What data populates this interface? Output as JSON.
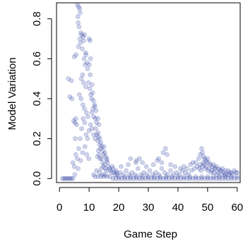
{
  "chart_data": {
    "type": "scatter",
    "title": "",
    "xlabel": "Game Step",
    "ylabel": "Model Variation",
    "xlim": [
      -1,
      61
    ],
    "ylim": [
      -0.02,
      0.88
    ],
    "xticks": [
      0,
      10,
      20,
      30,
      40,
      50,
      60
    ],
    "yticks": [
      0.0,
      0.2,
      0.4,
      0.6,
      0.8
    ],
    "xtick_labels": [
      "0",
      "10",
      "20",
      "30",
      "40",
      "50",
      "60"
    ],
    "ytick_labels": [
      "0.0",
      "0.2",
      "0.4",
      "0.6",
      "0.8"
    ],
    "grid": false,
    "legend": "none",
    "point_color": "#2b3aa0",
    "point_opacity": 0.22,
    "points": [
      [
        1,
        0.0
      ],
      [
        1.5,
        0.0
      ],
      [
        2,
        0.0
      ],
      [
        2.5,
        0.0
      ],
      [
        3,
        0.0
      ],
      [
        3.5,
        0.0
      ],
      [
        4,
        0.0
      ],
      [
        4.5,
        0.0
      ],
      [
        3,
        0.5
      ],
      [
        4,
        0.49
      ],
      [
        3.5,
        0.41
      ],
      [
        4.2,
        0.4
      ],
      [
        4.8,
        0.29
      ],
      [
        5.2,
        0.28
      ],
      [
        5.5,
        0.3
      ],
      [
        5,
        0.61
      ],
      [
        5.6,
        0.62
      ],
      [
        5.3,
        0.2
      ],
      [
        5.8,
        0.27
      ],
      [
        4.5,
        0.08
      ],
      [
        5,
        0.06
      ],
      [
        5.5,
        0.12
      ],
      [
        5.2,
        0.02
      ],
      [
        6,
        0.87
      ],
      [
        6.5,
        0.86
      ],
      [
        6.2,
        0.81
      ],
      [
        6.8,
        0.85
      ],
      [
        7,
        0.83
      ],
      [
        6.3,
        0.78
      ],
      [
        6.6,
        0.76
      ],
      [
        7.2,
        0.73
      ],
      [
        7.5,
        0.72
      ],
      [
        6.9,
        0.7
      ],
      [
        7.1,
        0.68
      ],
      [
        6.4,
        0.66
      ],
      [
        7.7,
        0.65
      ],
      [
        8,
        0.71
      ],
      [
        8.5,
        0.72
      ],
      [
        8.2,
        0.69
      ],
      [
        8.8,
        0.63
      ],
      [
        9,
        0.62
      ],
      [
        8.3,
        0.6
      ],
      [
        8.6,
        0.57
      ],
      [
        9.3,
        0.58
      ],
      [
        9.5,
        0.55
      ],
      [
        7.8,
        0.52
      ],
      [
        7.4,
        0.5
      ],
      [
        8.1,
        0.48
      ],
      [
        8.9,
        0.46
      ],
      [
        6.7,
        0.42
      ],
      [
        7.3,
        0.4
      ],
      [
        7.9,
        0.37
      ],
      [
        8.4,
        0.35
      ],
      [
        9.1,
        0.33
      ],
      [
        9.6,
        0.31
      ],
      [
        10,
        0.7
      ],
      [
        10.3,
        0.69
      ],
      [
        10.5,
        0.6
      ],
      [
        10.1,
        0.57
      ],
      [
        10.4,
        0.52
      ],
      [
        9.8,
        0.48
      ],
      [
        10.2,
        0.45
      ],
      [
        10.6,
        0.42
      ],
      [
        10.8,
        0.4
      ],
      [
        11,
        0.47
      ],
      [
        11.2,
        0.43
      ],
      [
        11.5,
        0.39
      ],
      [
        11.8,
        0.37
      ],
      [
        11.3,
        0.35
      ],
      [
        10.9,
        0.33
      ],
      [
        12,
        0.36
      ],
      [
        12.3,
        0.34
      ],
      [
        11.6,
        0.31
      ],
      [
        12.1,
        0.3
      ],
      [
        12.5,
        0.28
      ],
      [
        6,
        0.1
      ],
      [
        6.5,
        0.15
      ],
      [
        7,
        0.2
      ],
      [
        7.5,
        0.25
      ],
      [
        8,
        0.3
      ],
      [
        8.5,
        0.28
      ],
      [
        9,
        0.22
      ],
      [
        9.5,
        0.2
      ],
      [
        10,
        0.24
      ],
      [
        10.5,
        0.27
      ],
      [
        11,
        0.25
      ],
      [
        11.5,
        0.22
      ],
      [
        12,
        0.2
      ],
      [
        6.3,
        0.05
      ],
      [
        7.1,
        0.09
      ],
      [
        7.8,
        0.13
      ],
      [
        8.6,
        0.16
      ],
      [
        9.2,
        0.12
      ],
      [
        9.9,
        0.1
      ],
      [
        12.2,
        0.25
      ],
      [
        12.6,
        0.22
      ],
      [
        12.9,
        0.19
      ],
      [
        13,
        0.23
      ],
      [
        13.2,
        0.21
      ],
      [
        13.5,
        0.17
      ],
      [
        13.8,
        0.15
      ],
      [
        13.1,
        0.14
      ],
      [
        13.4,
        0.12
      ],
      [
        13.7,
        0.1
      ],
      [
        12.8,
        0.11
      ],
      [
        13,
        0.3
      ],
      [
        13.3,
        0.27
      ],
      [
        13.6,
        0.2
      ],
      [
        14,
        0.18
      ],
      [
        14.3,
        0.16
      ],
      [
        14.6,
        0.14
      ],
      [
        14.9,
        0.12
      ],
      [
        14.2,
        0.1
      ],
      [
        14.5,
        0.08
      ],
      [
        14.8,
        0.06
      ],
      [
        14.1,
        0.05
      ],
      [
        15,
        0.16
      ],
      [
        15.3,
        0.13
      ],
      [
        15.6,
        0.11
      ],
      [
        15.9,
        0.09
      ],
      [
        15.2,
        0.07
      ],
      [
        15.5,
        0.05
      ],
      [
        15.8,
        0.04
      ],
      [
        16,
        0.1
      ],
      [
        16.3,
        0.08
      ],
      [
        16.6,
        0.06
      ],
      [
        16.9,
        0.05
      ],
      [
        17.2,
        0.04
      ],
      [
        17.5,
        0.03
      ],
      [
        17.8,
        0.06
      ],
      [
        18.1,
        0.05
      ],
      [
        18.4,
        0.03
      ],
      [
        18.7,
        0.02
      ],
      [
        19,
        0.04
      ],
      [
        19.3,
        0.03
      ],
      [
        11.5,
        0.02
      ],
      [
        12.5,
        0.04
      ],
      [
        13.5,
        0.03
      ],
      [
        14.5,
        0.02
      ],
      [
        15.5,
        0.02
      ],
      [
        12,
        0.01
      ],
      [
        13,
        0.01
      ],
      [
        14,
        0.01
      ],
      [
        15,
        0.01
      ],
      [
        16,
        0.01
      ],
      [
        17,
        0.01
      ],
      [
        18,
        0.0
      ],
      [
        19,
        0.0
      ],
      [
        20,
        0.0
      ],
      [
        21,
        0.0
      ],
      [
        22,
        0.0
      ],
      [
        23,
        0.0
      ],
      [
        24,
        0.0
      ],
      [
        25,
        0.0
      ],
      [
        26,
        0.0
      ],
      [
        27,
        0.0
      ],
      [
        28,
        0.0
      ],
      [
        29,
        0.0
      ],
      [
        30,
        0.0
      ],
      [
        31,
        0.0
      ],
      [
        32,
        0.0
      ],
      [
        33,
        0.0
      ],
      [
        34,
        0.0
      ],
      [
        35,
        0.0
      ],
      [
        36,
        0.0
      ],
      [
        37,
        0.0
      ],
      [
        38,
        0.0
      ],
      [
        39,
        0.0
      ],
      [
        40,
        0.0
      ],
      [
        41,
        0.0
      ],
      [
        42,
        0.0
      ],
      [
        43,
        0.0
      ],
      [
        44,
        0.0
      ],
      [
        45,
        0.0
      ],
      [
        46,
        0.0
      ],
      [
        47,
        0.0
      ],
      [
        48,
        0.0
      ],
      [
        49,
        0.0
      ],
      [
        50,
        0.0
      ],
      [
        51,
        0.0
      ],
      [
        52,
        0.0
      ],
      [
        53,
        0.0
      ],
      [
        54,
        0.0
      ],
      [
        55,
        0.0
      ],
      [
        56,
        0.0
      ],
      [
        57,
        0.0
      ],
      [
        58,
        0.0
      ],
      [
        59,
        0.0
      ],
      [
        60,
        0.0
      ],
      [
        19.5,
        0.02
      ],
      [
        20.5,
        0.03
      ],
      [
        21.5,
        0.02
      ],
      [
        22.5,
        0.04
      ],
      [
        23.5,
        0.02
      ],
      [
        24.5,
        0.03
      ],
      [
        25.5,
        0.02
      ],
      [
        26.5,
        0.05
      ],
      [
        27.5,
        0.02
      ],
      [
        28.5,
        0.03
      ],
      [
        29.5,
        0.02
      ],
      [
        30.5,
        0.04
      ],
      [
        31.5,
        0.02
      ],
      [
        32.5,
        0.03
      ],
      [
        33.5,
        0.02
      ],
      [
        34.5,
        0.05
      ],
      [
        35.5,
        0.03
      ],
      [
        36.5,
        0.02
      ],
      [
        37.5,
        0.04
      ],
      [
        38.5,
        0.02
      ],
      [
        39.5,
        0.03
      ],
      [
        40.5,
        0.02
      ],
      [
        41.5,
        0.04
      ],
      [
        42.5,
        0.03
      ],
      [
        43.5,
        0.02
      ],
      [
        44.5,
        0.04
      ],
      [
        45.5,
        0.05
      ],
      [
        46.5,
        0.06
      ],
      [
        47.5,
        0.07
      ],
      [
        48.5,
        0.08
      ],
      [
        49.5,
        0.06
      ],
      [
        50.5,
        0.05
      ],
      [
        51.5,
        0.04
      ],
      [
        52.5,
        0.05
      ],
      [
        53.5,
        0.03
      ],
      [
        54.5,
        0.04
      ],
      [
        55.5,
        0.03
      ],
      [
        56.5,
        0.02
      ],
      [
        57.5,
        0.03
      ],
      [
        58.5,
        0.02
      ],
      [
        59.5,
        0.03
      ],
      [
        20,
        0.01
      ],
      [
        22,
        0.01
      ],
      [
        24,
        0.01
      ],
      [
        26,
        0.01
      ],
      [
        28,
        0.01
      ],
      [
        30,
        0.01
      ],
      [
        32,
        0.01
      ],
      [
        34,
        0.01
      ],
      [
        36,
        0.01
      ],
      [
        38,
        0.01
      ],
      [
        40,
        0.01
      ],
      [
        42,
        0.01
      ],
      [
        44,
        0.01
      ],
      [
        46,
        0.01
      ],
      [
        48,
        0.01
      ],
      [
        50,
        0.01
      ],
      [
        52,
        0.01
      ],
      [
        54,
        0.01
      ],
      [
        56,
        0.01
      ],
      [
        58,
        0.01
      ],
      [
        60,
        0.01
      ],
      [
        20.8,
        0.06
      ],
      [
        23.2,
        0.07
      ],
      [
        25.8,
        0.08
      ],
      [
        27,
        0.1
      ],
      [
        29.3,
        0.06
      ],
      [
        31.7,
        0.07
      ],
      [
        24,
        0.1
      ],
      [
        26,
        0.09
      ],
      [
        28,
        0.08
      ],
      [
        33,
        0.09
      ],
      [
        34.5,
        0.08
      ],
      [
        37.5,
        0.07
      ],
      [
        35,
        0.13
      ],
      [
        35.8,
        0.15
      ],
      [
        36.3,
        0.12
      ],
      [
        33.5,
        0.1
      ],
      [
        39,
        0.06
      ],
      [
        40.8,
        0.05
      ],
      [
        42,
        0.06
      ],
      [
        43,
        0.05
      ],
      [
        44.2,
        0.07
      ],
      [
        45,
        0.08
      ],
      [
        46,
        0.08
      ],
      [
        47,
        0.1
      ],
      [
        47.5,
        0.12
      ],
      [
        48,
        0.15
      ],
      [
        48.3,
        0.13
      ],
      [
        48.6,
        0.11
      ],
      [
        49,
        0.1
      ],
      [
        49.4,
        0.09
      ],
      [
        49.8,
        0.08
      ],
      [
        50,
        0.1
      ],
      [
        50.5,
        0.08
      ],
      [
        51,
        0.07
      ],
      [
        51.5,
        0.06
      ],
      [
        52,
        0.07
      ],
      [
        52.5,
        0.05
      ],
      [
        53,
        0.06
      ],
      [
        53.8,
        0.05
      ],
      [
        54.2,
        0.04
      ],
      [
        55,
        0.05
      ],
      [
        56,
        0.04
      ],
      [
        57,
        0.04
      ],
      [
        58,
        0.03
      ],
      [
        59,
        0.04
      ],
      [
        60,
        0.03
      ],
      [
        47.2,
        0.05
      ],
      [
        47.8,
        0.04
      ],
      [
        48.2,
        0.06
      ],
      [
        48.8,
        0.07
      ],
      [
        49.2,
        0.05
      ],
      [
        50.2,
        0.04
      ],
      [
        51.2,
        0.03
      ],
      [
        52.2,
        0.03
      ],
      [
        53.2,
        0.02
      ],
      [
        54.8,
        0.02
      ],
      [
        55.8,
        0.02
      ],
      [
        57.2,
        0.02
      ]
    ]
  }
}
